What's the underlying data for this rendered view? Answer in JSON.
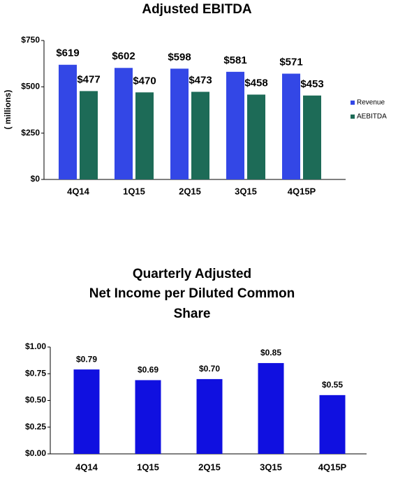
{
  "chart_data": [
    {
      "type": "bar",
      "title": "Adjusted EBITDA",
      "y_label": "( millions)",
      "categories": [
        "4Q14",
        "1Q15",
        "2Q15",
        "3Q15",
        "4Q15P"
      ],
      "series": [
        {
          "name": "Revenue",
          "color": "#3347e6",
          "values": [
            619,
            602,
            598,
            581,
            571
          ],
          "value_labels": [
            "$619",
            "$602",
            "$598",
            "$581",
            "$571"
          ]
        },
        {
          "name": "AEBITDA",
          "color": "#1d6b57",
          "values": [
            477,
            470,
            473,
            458,
            453
          ],
          "value_labels": [
            "$477",
            "$470",
            "$473",
            "$458",
            "$453"
          ]
        }
      ],
      "ylim": [
        0,
        750
      ],
      "yticks": [
        {
          "value": 0,
          "label": "$0"
        },
        {
          "value": 250,
          "label": "$250"
        },
        {
          "value": 500,
          "label": "$500"
        },
        {
          "value": 750,
          "label": "$750"
        }
      ],
      "legend": "right"
    },
    {
      "type": "bar",
      "title": [
        "Quarterly Adjusted",
        "Net Income per Diluted Common",
        "Share"
      ],
      "categories": [
        "4Q14",
        "1Q15",
        "2Q15",
        "3Q15",
        "4Q15P"
      ],
      "values": [
        0.79,
        0.69,
        0.7,
        0.85,
        0.55
      ],
      "value_labels": [
        "$0.79",
        "$0.69",
        "$0.70",
        "$0.85",
        "$0.55"
      ],
      "color": "#1010e0",
      "ylim": [
        0,
        1
      ],
      "yticks": [
        {
          "value": 0,
          "label": "$0.00"
        },
        {
          "value": 0.25,
          "label": "$0.25"
        },
        {
          "value": 0.5,
          "label": "$0.50"
        },
        {
          "value": 0.75,
          "label": "$0.75"
        },
        {
          "value": 1,
          "label": "$1.00"
        }
      ]
    }
  ]
}
